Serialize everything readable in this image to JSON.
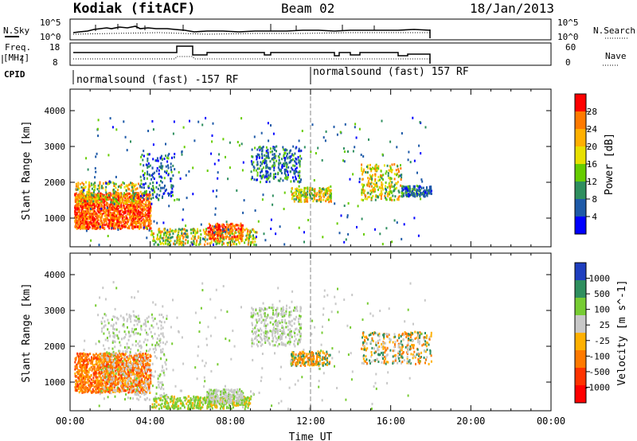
{
  "header": {
    "station": "Kodiak (fitACF)",
    "beam": "Beam 02",
    "date": "18/Jan/2013"
  },
  "strip": {
    "nsky_label": "N.Sky",
    "nsky_ticks": [
      "10^5",
      "10^0"
    ],
    "nsearch_label": "N.Search",
    "nsearch_ticks": [
      "10^5",
      "10^0"
    ],
    "freq_label_top": "Freq.",
    "freq_label_bottom": "[MHz]",
    "freq_ticks": [
      "18",
      "8"
    ],
    "nave_label": "Nave",
    "nave_ticks": [
      "60",
      "0"
    ],
    "cpid_label": "CPID",
    "cpid_segments": [
      "normalsound (fast) -157 RF",
      "normalsound (fast) 157 RF"
    ]
  },
  "chart_data": [
    {
      "type": "heatmap",
      "name": "power",
      "ylabel": "Slant Range [km]",
      "xlabel": "",
      "xlim": [
        "00:00",
        "24:00"
      ],
      "ylim": [
        200,
        4600
      ],
      "ytick_labels": [
        "1000",
        "2000",
        "3000",
        "4000"
      ],
      "colorbar_label": "Power [dB]",
      "colorbar_ticks": [
        "28",
        "24",
        "20",
        "16",
        "12",
        "8",
        "4"
      ],
      "colorbar_colors": [
        "#ff0000",
        "#ff7a00",
        "#ffb000",
        "#e8e000",
        "#66cc00",
        "#2f8f5f",
        "#1e5aa8",
        "#0000ff"
      ],
      "regions": [
        {
          "t0": 0.0,
          "t1": 4.0,
          "r0": 700,
          "r1": 1900,
          "level": "high"
        },
        {
          "t0": 3.5,
          "t1": 5.2,
          "r0": 1500,
          "r1": 2900,
          "level": "low"
        },
        {
          "t0": 4.0,
          "t1": 9.5,
          "r0": 250,
          "r1": 700,
          "level": "mid"
        },
        {
          "t0": 9.0,
          "t1": 11.5,
          "r0": 2000,
          "r1": 3000,
          "level": "low"
        },
        {
          "t0": 11.0,
          "t1": 13.0,
          "r0": 1500,
          "r1": 1800,
          "level": "mid"
        },
        {
          "t0": 14.5,
          "t1": 18.0,
          "r0": 1500,
          "r1": 2500,
          "level": "mid"
        }
      ]
    },
    {
      "type": "heatmap",
      "name": "velocity",
      "ylabel": "Slant Range [km]",
      "xlabel": "Time UT",
      "xlim": [
        "00:00",
        "24:00"
      ],
      "ylim": [
        200,
        4600
      ],
      "ytick_labels": [
        "1000",
        "2000",
        "3000",
        "4000"
      ],
      "xtick_labels": [
        "00:00",
        "04:00",
        "08:00",
        "12:00",
        "16:00",
        "20:00",
        "00:00"
      ],
      "colorbar_label": "Velocity [m s^-1]",
      "colorbar_ticks": [
        "1000",
        "500",
        "100",
        "25",
        "-25",
        "-100",
        "-500",
        "-1000"
      ],
      "colorbar_colors": [
        "#1f3fbf",
        "#2f8f5f",
        "#77cc33",
        "#c8c8c8",
        "#ffb000",
        "#ff7a00",
        "#ff3300",
        "#ff0000"
      ]
    }
  ]
}
